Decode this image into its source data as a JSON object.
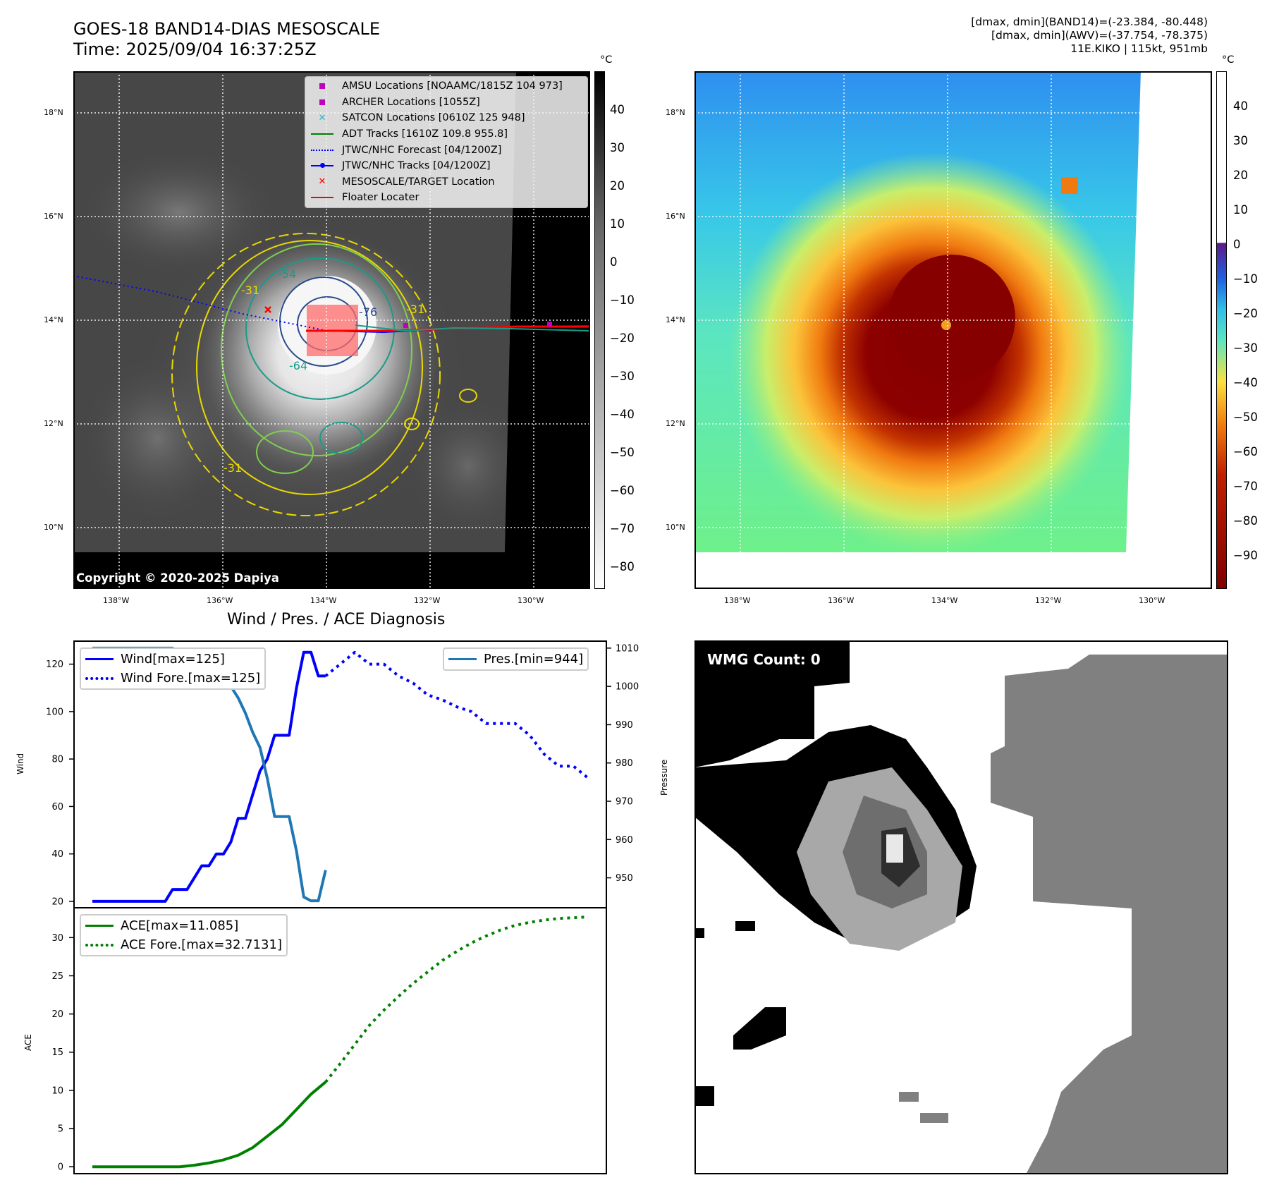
{
  "header": {
    "title_line1": "GOES-18 BAND14-DIAS MESOSCALE",
    "title_line2": "Time: 2025/09/04 16:37:25Z",
    "info_line1": "[dmax, dmin](BAND14)=(-23.384, -80.448)",
    "info_line2": "[dmax, dmin](AWV)=(-37.754, -78.375)",
    "info_line3": "11E.KIKO | 115kt, 951mb"
  },
  "map_axes": {
    "lat_labels": [
      "18°N",
      "16°N",
      "14°N",
      "12°N",
      "10°N"
    ],
    "lon_labels": [
      "138°W",
      "136°W",
      "134°W",
      "132°W",
      "130°W"
    ]
  },
  "ir_panel": {
    "copyright": "Copyright © 2020-2025 Dapiya",
    "contour_labels": [
      "-54",
      "-76",
      "-64",
      "-31",
      "-31",
      "-31"
    ],
    "colorbar_unit": "°C",
    "colorbar_ticks": [
      "40",
      "30",
      "20",
      "10",
      "0",
      "−10",
      "−20",
      "−30",
      "−40",
      "−50",
      "−60",
      "−70",
      "−80"
    ],
    "legend": [
      {
        "label": "AMSU Locations [NOAAMC/1815Z 104 973]",
        "icon": "square-marker",
        "color": "#bf00bf"
      },
      {
        "label": "ARCHER Locations [1055Z]",
        "icon": "square-marker",
        "color": "#bf00bf"
      },
      {
        "label": "SATCON Locations [0610Z 125 948]",
        "icon": "x-marker",
        "color": "#17becf"
      },
      {
        "label": "ADT Tracks [1610Z 109.8 955.8]",
        "icon": "solid-line",
        "color": "#008000"
      },
      {
        "label": "JTWC/NHC Forecast [04/1200Z]",
        "icon": "dotted-line",
        "color": "#0000ff"
      },
      {
        "label": "JTWC/NHC Tracks [04/1200Z]",
        "icon": "line-dot",
        "color": "#0000ff"
      },
      {
        "label": "MESOSCALE/TARGET Location",
        "icon": "x-marker",
        "color": "#ff0000"
      },
      {
        "label": "Floater Locater",
        "icon": "solid-line",
        "color": "#ff0000"
      }
    ]
  },
  "awv_panel": {
    "colorbar_unit": "°C",
    "colorbar_ticks": [
      "40",
      "30",
      "20",
      "10",
      "0",
      "−10",
      "−20",
      "−30",
      "−40",
      "−50",
      "−60",
      "−70",
      "−80",
      "−90"
    ]
  },
  "wmg_panel": {
    "label": "WMG Count: 0"
  },
  "chart_data": [
    {
      "type": "line",
      "title": "Wind / Pres. / ACE Diagnosis",
      "xlabel": "",
      "ylabel": "Wind",
      "ylabel_right": "Pressure",
      "ylim": [
        17,
        130
      ],
      "ylim_right": [
        942,
        1012
      ],
      "yticks": [
        20,
        40,
        60,
        80,
        100,
        120
      ],
      "yticks_right": [
        950,
        960,
        970,
        980,
        990,
        1000,
        1010
      ],
      "series": [
        {
          "name": "Wind[max=125]",
          "style": "solid",
          "color": "#0000ff",
          "axis": "left",
          "x": [
            0,
            1,
            2,
            3,
            4,
            5,
            6,
            7,
            8,
            9,
            10,
            11,
            12,
            13,
            14,
            15,
            16,
            17,
            18,
            19,
            20,
            21,
            22,
            23,
            24,
            25,
            26,
            27,
            28,
            29,
            30,
            31,
            32
          ],
          "values": [
            20,
            20,
            20,
            20,
            20,
            20,
            20,
            20,
            20,
            20,
            20,
            25,
            25,
            25,
            30,
            35,
            35,
            40,
            40,
            45,
            55,
            55,
            65,
            75,
            80,
            90,
            90,
            90,
            110,
            125,
            125,
            115,
            115
          ]
        },
        {
          "name": "Wind Fore.[max=125]",
          "style": "dotted",
          "color": "#0000ff",
          "axis": "left",
          "x": [
            32,
            34,
            36,
            38,
            40,
            42,
            44,
            46,
            48,
            50,
            52,
            54,
            56,
            58,
            60,
            62,
            64,
            66,
            68
          ],
          "values": [
            115,
            120,
            125,
            120,
            120,
            115,
            112,
            107,
            105,
            102,
            100,
            95,
            95,
            95,
            90,
            82,
            77,
            77,
            72
          ]
        },
        {
          "name": "Pres.[min=944]",
          "style": "solid",
          "color": "#1f77b4",
          "axis": "right",
          "x": [
            0,
            1,
            2,
            3,
            4,
            5,
            6,
            7,
            8,
            9,
            10,
            11,
            12,
            13,
            14,
            15,
            16,
            17,
            18,
            19,
            20,
            21,
            22,
            23,
            24,
            25,
            26,
            27,
            28,
            29,
            30,
            31,
            32
          ],
          "values": [
            1010,
            1010,
            1010,
            1010,
            1010,
            1010,
            1010,
            1010,
            1010,
            1010,
            1010,
            1010,
            1009,
            1009,
            1009,
            1008,
            1006,
            1003,
            1002,
            1000,
            997,
            993,
            988,
            984,
            976,
            966,
            966,
            966,
            957,
            945,
            944,
            944,
            952
          ]
        }
      ]
    },
    {
      "type": "line",
      "title": "",
      "xlabel": "",
      "ylabel": "ACE",
      "ylim": [
        -1,
        34
      ],
      "yticks": [
        0,
        5,
        10,
        15,
        20,
        25,
        30
      ],
      "series": [
        {
          "name": "ACE[max=11.085]",
          "style": "solid",
          "color": "#008000",
          "x": [
            0,
            2,
            4,
            6,
            8,
            10,
            12,
            14,
            16,
            18,
            20,
            22,
            24,
            26,
            28,
            30,
            32
          ],
          "values": [
            0,
            0,
            0,
            0,
            0,
            0,
            0,
            0.2,
            0.5,
            0.9,
            1.5,
            2.5,
            4.0,
            5.5,
            7.5,
            9.5,
            11.085
          ]
        },
        {
          "name": "ACE Fore.[max=32.7131]",
          "style": "dotted",
          "color": "#008000",
          "x": [
            32,
            34,
            36,
            38,
            40,
            42,
            44,
            46,
            48,
            50,
            52,
            54,
            56,
            58,
            60,
            62,
            64,
            66,
            68
          ],
          "values": [
            11.085,
            13.5,
            16,
            18.5,
            20.5,
            22.3,
            24,
            25.5,
            27,
            28.2,
            29.3,
            30.2,
            31,
            31.6,
            32,
            32.3,
            32.5,
            32.6,
            32.7131
          ]
        }
      ]
    }
  ]
}
